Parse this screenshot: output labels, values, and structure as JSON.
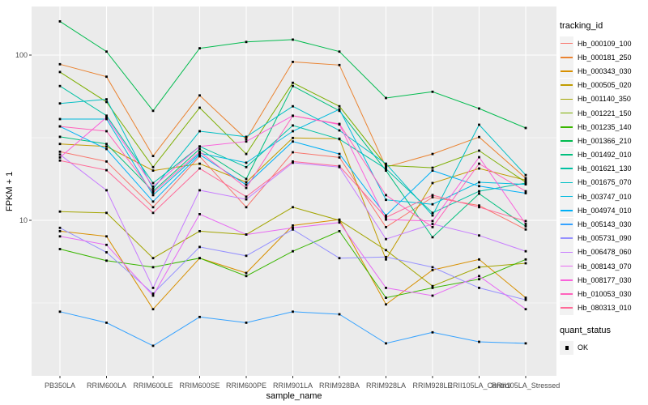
{
  "figure": {
    "bg": "#FFFFFF",
    "panel_bg": "#EBEBEB",
    "grid_color": "#FFFFFF",
    "tick_color": "#333333",
    "tick_label_color": "#4D4D4D",
    "point_color": "#000000"
  },
  "legend": {
    "tracking_title": "tracking_id",
    "quant_title": "quant_status",
    "quant_ok_label": "OK"
  },
  "chart_data": {
    "type": "line",
    "title": "",
    "xlabel": "sample_name",
    "ylabel": "FPKM + 1",
    "y_scale": "log10",
    "ytick_labels": [
      "10",
      "100"
    ],
    "yticks": [
      10,
      100
    ],
    "y_minor_breaks": [
      3.162,
      31.62
    ],
    "ylim": [
      1.13,
      197
    ],
    "grid": true,
    "legend_position": "right",
    "point_marker": "small black square",
    "categories": [
      "PB350LA",
      "RRIM600LA",
      "RRIM600LE",
      "RRIM600SE",
      "RRIM600PE",
      "RRIM901LA",
      "RRIM928BA",
      "RRIM928LA",
      "RRIM928LE",
      "RRII105LA_Control",
      "RRII105LA_Stressed"
    ],
    "series": [
      {
        "name": "Hb_000109_100",
        "color": "#F8766D",
        "values": [
          26,
          22.7,
          12,
          24.4,
          12,
          25.8,
          24,
          9.1,
          13.8,
          12.3,
          8.8
        ]
      },
      {
        "name": "Hb_000181_250",
        "color": "#EA8331",
        "values": [
          88,
          74,
          24.5,
          57,
          31,
          91,
          87,
          21,
          25.2,
          31.9,
          18
        ]
      },
      {
        "name": "Hb_000343_030",
        "color": "#D89000",
        "values": [
          8.6,
          8,
          2.9,
          5.9,
          4.8,
          9.3,
          10.1,
          3.1,
          5,
          5.8,
          3.4
        ]
      },
      {
        "name": "Hb_000505_020",
        "color": "#C09B00",
        "values": [
          29,
          28,
          20,
          22,
          17,
          31.5,
          31.2,
          5.8,
          16.8,
          20.6,
          17.5
        ]
      },
      {
        "name": "Hb_001140_350",
        "color": "#A3A500",
        "values": [
          11.3,
          11.1,
          5.9,
          8.6,
          8.2,
          12,
          10,
          6.6,
          4,
          5.2,
          5.5
        ]
      },
      {
        "name": "Hb_001221_150",
        "color": "#7CAE00",
        "values": [
          79,
          52,
          21,
          48,
          25.2,
          68,
          49,
          21.5,
          20.8,
          26.4,
          17
        ]
      },
      {
        "name": "Hb_001235_140",
        "color": "#39B600",
        "values": [
          6.7,
          5.7,
          5.2,
          5.9,
          4.6,
          6.5,
          8.6,
          3.4,
          3.9,
          4.4,
          5.8
        ]
      },
      {
        "name": "Hb_001366_210",
        "color": "#00BB4E",
        "values": [
          160,
          105,
          46,
          110,
          120,
          124,
          105,
          55,
          60,
          47.5,
          36.2
        ]
      },
      {
        "name": "Hb_001492_010",
        "color": "#00BF7D",
        "values": [
          32,
          29,
          15,
          27,
          17.8,
          65,
          46,
          20,
          7.9,
          14.5,
          9.2
        ]
      },
      {
        "name": "Hb_001621_130",
        "color": "#00C1A3",
        "values": [
          65,
          43,
          16.8,
          28,
          21,
          37.5,
          31,
          20.5,
          11.1,
          15,
          16.8
        ]
      },
      {
        "name": "Hb_001675_070",
        "color": "#00BFC4",
        "values": [
          51,
          54,
          15.5,
          34.6,
          32,
          49,
          35,
          22,
          10.7,
          37.9,
          18.8
        ]
      },
      {
        "name": "Hb_003747_010",
        "color": "#00BADE",
        "values": [
          41,
          41,
          14.2,
          25.5,
          22.3,
          34.6,
          47,
          13.3,
          12.5,
          17,
          16.5
        ]
      },
      {
        "name": "Hb_004974_010",
        "color": "#00B0F6",
        "values": [
          37,
          27,
          13,
          25,
          16.4,
          30,
          25.2,
          10.7,
          20,
          16.1,
          14.6
        ]
      },
      {
        "name": "Hb_005143_030",
        "color": "#35A2FF",
        "values": [
          2.8,
          2.4,
          1.74,
          2.6,
          2.4,
          2.8,
          2.7,
          1.8,
          2.1,
          1.84,
          1.8
        ]
      },
      {
        "name": "Hb_005731_090",
        "color": "#9590FF",
        "values": [
          9,
          6.4,
          3.6,
          6.9,
          6.1,
          8.8,
          5.9,
          6,
          5.2,
          3.9,
          3.3
        ]
      },
      {
        "name": "Hb_006478_060",
        "color": "#C77CFF",
        "values": [
          25,
          15.2,
          3.9,
          15.2,
          13.4,
          22.3,
          21,
          7.7,
          9.5,
          8.1,
          6.5
        ]
      },
      {
        "name": "Hb_008143_070",
        "color": "#E76BF3",
        "values": [
          8,
          7.1,
          3.5,
          10.9,
          8.2,
          9,
          9.7,
          3.9,
          3.5,
          4.6,
          2.9
        ]
      },
      {
        "name": "Hb_008177_030",
        "color": "#FA62DB",
        "values": [
          24,
          42,
          16,
          28,
          30,
          43,
          38,
          10.1,
          9.9,
          24.1,
          9.5
        ]
      },
      {
        "name": "Hb_010053_030",
        "color": "#FF62BC",
        "values": [
          37,
          34.6,
          14.7,
          26,
          15.7,
          42.9,
          38.3,
          14.2,
          9.1,
          22,
          15
        ]
      },
      {
        "name": "Hb_080313_010",
        "color": "#FF6A98",
        "values": [
          23,
          20.1,
          11.1,
          20.6,
          13.9,
          22.7,
          21.3,
          10.4,
          14.2,
          12,
          9.9
        ]
      }
    ]
  }
}
